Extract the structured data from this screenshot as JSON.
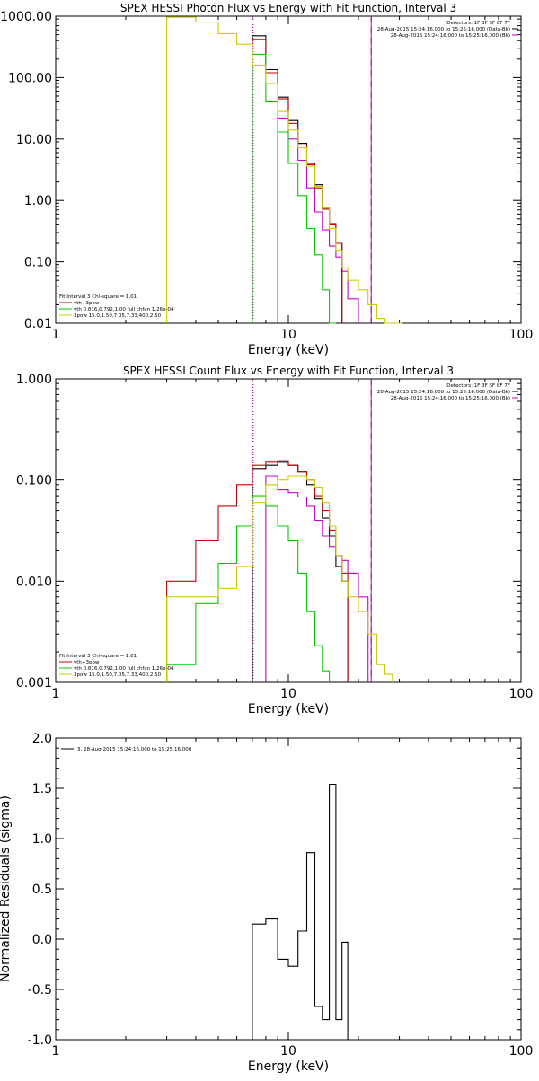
{
  "chart_data": [
    {
      "type": "line",
      "title": "SPEX HESSI Photon Flux vs Energy with Fit Function, Interval 3",
      "xlabel": "Energy (keV)",
      "ylabel": "",
      "xscale": "log",
      "yscale": "log",
      "xlim": [
        1,
        100
      ],
      "ylim": [
        0.01,
        1000
      ],
      "xticks": [
        {
          "v": 1,
          "label": "1"
        },
        {
          "v": 10,
          "label": "10"
        },
        {
          "v": 100,
          "label": "100"
        }
      ],
      "yticks": [
        {
          "v": 0.01,
          "label": "0.01"
        },
        {
          "v": 0.1,
          "label": "0.10"
        },
        {
          "v": 1,
          "label": "1.00"
        },
        {
          "v": 10,
          "label": "10.00"
        },
        {
          "v": 100,
          "label": "100.00"
        },
        {
          "v": 1000,
          "label": "1000.00"
        }
      ],
      "info_lines": [
        "Detectors: 1F 3F 6F 8F 7F",
        "28-Aug-2015 15:24:16.000 to 15:25:16.000 (Data-Bk)",
        "28-Aug-2015 15:24:16.000 to 15:25:16.000 (Bk)"
      ],
      "info_colors": [
        "#000000",
        "#000000",
        "#cc00cc"
      ],
      "fit_lines": [
        "Fit Interval 3   Chi-square = 1.01",
        "vth+3pow",
        "vth 0.816,0.792,1.00  full chfan 1.26e-04",
        "3pow 15.0,1.50,7.05,7.33,400,2.50"
      ],
      "fit_colors": [
        "#000000",
        "#cc0000",
        "#00cc00",
        "#cccc00"
      ],
      "vlines": [
        {
          "x": 7.05,
          "color": "#000000",
          "dash": "1,2"
        },
        {
          "x": 7.05,
          "color": "#cc00cc",
          "dash": "1,2"
        },
        {
          "x": 22.7,
          "color": "#000000",
          "dash": "7,5"
        },
        {
          "x": 22.7,
          "color": "#cc00cc",
          "dash": ""
        }
      ],
      "edges": [
        3,
        4,
        5,
        6,
        7,
        8,
        9,
        10,
        11,
        12,
        13,
        14,
        15,
        16,
        17,
        18,
        20,
        22,
        24,
        26,
        28,
        31
      ],
      "series": [
        {
          "name": "Data-Bk",
          "color": "#000000",
          "values": [
            null,
            null,
            null,
            null,
            480,
            135,
            48,
            20,
            8.5,
            4.0,
            1.8,
            0.75,
            0.42,
            0.2,
            null,
            null,
            null,
            null,
            null,
            null,
            null
          ]
        },
        {
          "name": "Bk",
          "color": "#cc00cc",
          "values": [
            null,
            null,
            null,
            null,
            null,
            null,
            22,
            10,
            4.5,
            1.6,
            0.65,
            0.33,
            0.18,
            0.12,
            0.07,
            0.025,
            null,
            null,
            null,
            null,
            null
          ]
        },
        {
          "name": "vth+3pow",
          "color": "#cc0000",
          "values": [
            null,
            null,
            null,
            null,
            420,
            120,
            45,
            18,
            8.0,
            3.8,
            1.6,
            0.72,
            0.4,
            0.2,
            null,
            null,
            null,
            null,
            null,
            null,
            null
          ]
        },
        {
          "name": "vth",
          "color": "#00cc00",
          "values": [
            null,
            null,
            null,
            null,
            240,
            40,
            13,
            4,
            1.2,
            0.35,
            0.13,
            0.035,
            0.01,
            null,
            null,
            null,
            null,
            null,
            null,
            null,
            null
          ]
        },
        {
          "name": "3pow",
          "color": "#cccc00",
          "values": [
            960,
            800,
            520,
            350,
            160,
            80,
            28,
            14,
            7.2,
            3.6,
            1.7,
            0.75,
            0.35,
            0.15,
            0.08,
            0.05,
            0.035,
            0.02,
            0.012,
            0.01,
            0.003
          ]
        }
      ]
    },
    {
      "type": "line",
      "title": "SPEX HESSI Count Flux vs Energy with Fit Function, Interval 3",
      "xlabel": "Energy (keV)",
      "ylabel": "",
      "xscale": "log",
      "yscale": "log",
      "xlim": [
        1,
        100
      ],
      "ylim": [
        0.001,
        1
      ],
      "xticks": [
        {
          "v": 1,
          "label": "1"
        },
        {
          "v": 10,
          "label": "10"
        },
        {
          "v": 100,
          "label": "100"
        }
      ],
      "yticks": [
        {
          "v": 0.001,
          "label": "0.001"
        },
        {
          "v": 0.01,
          "label": "0.010"
        },
        {
          "v": 0.1,
          "label": "0.100"
        },
        {
          "v": 1,
          "label": "1.000"
        }
      ],
      "info_lines": [
        "Detectors: 1F 3F 6F 8F 7F",
        "28-Aug-2015 15:24:16.000 to 15:25:16.000 (Data-Bk)",
        "28-Aug-2015 15:24:16.000 to 15:25:16.000 (Bk)"
      ],
      "info_colors": [
        "#000000",
        "#000000",
        "#cc00cc"
      ],
      "fit_lines": [
        "Fit Interval 3   Chi-square = 1.01",
        "vth+3pow",
        "vth 0.816,0.792,1.00  full chfan 1.26e-04",
        "3pow 15.0,1.50,7.05,7.33,400,2.50"
      ],
      "fit_colors": [
        "#000000",
        "#cc0000",
        "#00cc00",
        "#cccc00"
      ],
      "vlines": [
        {
          "x": 7.05,
          "color": "#000000",
          "dash": "1,2"
        },
        {
          "x": 7.05,
          "color": "#cc00cc",
          "dash": "1,2"
        },
        {
          "x": 22.7,
          "color": "#000000",
          "dash": "7,5"
        },
        {
          "x": 22.7,
          "color": "#cc00cc",
          "dash": ""
        }
      ],
      "edges": [
        3,
        4,
        5,
        6,
        7,
        8,
        9,
        10,
        11,
        12,
        13,
        14,
        15,
        16,
        17,
        18,
        20,
        22,
        24,
        26,
        28,
        31
      ],
      "series": [
        {
          "name": "Data-Bk",
          "color": "#000000",
          "values": [
            null,
            null,
            null,
            null,
            0.13,
            0.14,
            0.15,
            0.14,
            0.12,
            0.09,
            0.065,
            0.042,
            0.028,
            0.014,
            0.01,
            null,
            null,
            null,
            null,
            null,
            null
          ]
        },
        {
          "name": "Bk",
          "color": "#cc00cc",
          "values": [
            null,
            null,
            null,
            null,
            null,
            0.11,
            0.08,
            0.075,
            0.068,
            0.055,
            0.04,
            0.028,
            0.022,
            0.018,
            0.016,
            0.012,
            0.007,
            null,
            null,
            null,
            null
          ]
        },
        {
          "name": "vth+3pow",
          "color": "#cc0000",
          "values": [
            0.01,
            0.025,
            0.055,
            0.09,
            0.14,
            0.15,
            0.155,
            0.14,
            0.12,
            0.1,
            0.07,
            0.05,
            0.032,
            0.018,
            0.012,
            null,
            null,
            null,
            null,
            null,
            null
          ]
        },
        {
          "name": "vth",
          "color": "#00cc00",
          "values": [
            0.0015,
            0.006,
            0.015,
            0.035,
            0.07,
            0.055,
            0.035,
            0.025,
            0.012,
            0.005,
            0.0023,
            0.0013,
            null,
            null,
            null,
            null,
            null,
            null,
            null,
            null,
            null
          ]
        },
        {
          "name": "3pow",
          "color": "#cccc00",
          "values": [
            0.007,
            0.007,
            0.0085,
            0.014,
            0.06,
            0.09,
            0.1,
            0.11,
            0.11,
            0.1,
            0.085,
            0.06,
            0.035,
            0.018,
            0.01,
            0.007,
            0.005,
            0.003,
            0.0015,
            0.0012,
            null
          ]
        }
      ]
    },
    {
      "type": "line",
      "title": "",
      "xlabel": "Energy (keV)",
      "ylabel": "Normalized Residuals (sigma)",
      "xscale": "log",
      "yscale": "linear",
      "xlim": [
        1,
        100
      ],
      "ylim": [
        -1.0,
        2.0
      ],
      "xticks": [
        {
          "v": 1,
          "label": "1"
        },
        {
          "v": 10,
          "label": "10"
        },
        {
          "v": 100,
          "label": "100"
        }
      ],
      "yticks": [
        {
          "v": -1.0,
          "label": "-1.0"
        },
        {
          "v": -0.5,
          "label": "-0.5"
        },
        {
          "v": 0.0,
          "label": "0.0"
        },
        {
          "v": 0.5,
          "label": "0.5"
        },
        {
          "v": 1.0,
          "label": "1.0"
        },
        {
          "v": 1.5,
          "label": "1.5"
        },
        {
          "v": 2.0,
          "label": "2.0"
        }
      ],
      "legend": "3, 28-Aug-2015 15:24:16.000 to 15:25:16.000",
      "legend_color": "#000000",
      "edges": [
        7,
        8,
        9,
        10,
        11,
        12,
        13,
        14,
        15,
        16,
        17,
        18,
        20,
        22,
        24
      ],
      "series": [
        {
          "name": "3, 28-Aug-2015 15:24:16.000 to 15:25:16.000",
          "color": "#000000",
          "values": [
            0.15,
            0.2,
            -0.2,
            -0.27,
            0.08,
            0.86,
            -0.67,
            -0.8,
            1.54,
            -0.8,
            -0.03,
            null,
            null,
            null
          ]
        }
      ]
    }
  ]
}
